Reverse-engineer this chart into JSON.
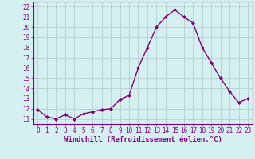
{
  "x": [
    0,
    1,
    2,
    3,
    4,
    5,
    6,
    7,
    8,
    9,
    10,
    11,
    12,
    13,
    14,
    15,
    16,
    17,
    18,
    19,
    20,
    21,
    22,
    23
  ],
  "y": [
    11.9,
    11.2,
    11.0,
    11.4,
    11.0,
    11.5,
    11.7,
    11.9,
    12.0,
    12.9,
    13.3,
    16.0,
    18.0,
    20.0,
    21.0,
    21.7,
    21.0,
    20.4,
    18.0,
    16.5,
    15.0,
    13.7,
    12.6,
    13.0
  ],
  "line_color": "#800080",
  "marker": "D",
  "marker_size": 2.0,
  "linewidth": 1.0,
  "xlabel": "Windchill (Refroidissement éolien,°C)",
  "xlim": [
    -0.5,
    23.5
  ],
  "ylim": [
    10.5,
    22.5
  ],
  "yticks": [
    11,
    12,
    13,
    14,
    15,
    16,
    17,
    18,
    19,
    20,
    21,
    22
  ],
  "xticks": [
    0,
    1,
    2,
    3,
    4,
    5,
    6,
    7,
    8,
    9,
    10,
    11,
    12,
    13,
    14,
    15,
    16,
    17,
    18,
    19,
    20,
    21,
    22,
    23
  ],
  "bg_color": "#d4f0f0",
  "grid_color": "#b0c8c8",
  "line_border_color": "#800080",
  "tick_color": "#800080",
  "label_color": "#800080",
  "tick_fontsize": 5.5,
  "xlabel_fontsize": 6.5
}
